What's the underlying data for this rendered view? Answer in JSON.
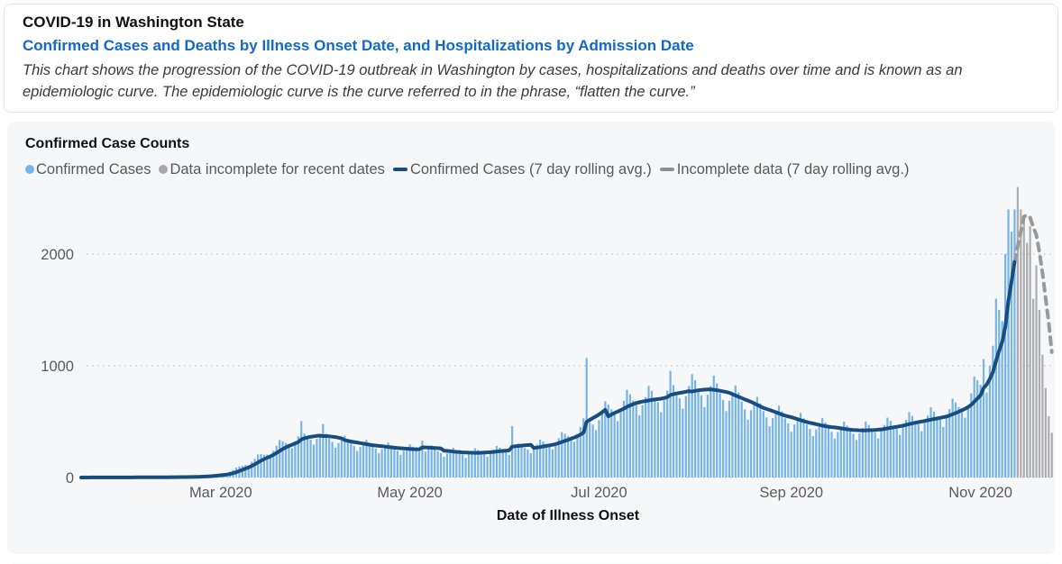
{
  "header": {
    "title": "COVID-19 in Washington State",
    "subtitle": "Confirmed Cases and Deaths by Illness Onset Date, and Hospitalizations by Admission Date",
    "description": "This chart shows the progression of the COVID-19 outbreak in Washington by cases, hospitalizations and deaths over time and is known as an epidemiologic curve. The epidemiologic curve is the curve referred to in the phrase, “flatten the curve.”"
  },
  "chart_card": {
    "title": "Confirmed Case Counts",
    "legend": [
      {
        "marker": "dot",
        "color": "#76b4ea",
        "label": "Confirmed Cases"
      },
      {
        "marker": "dot",
        "color": "#a8a8a8",
        "label": "Data incomplete for recent dates"
      },
      {
        "marker": "line",
        "color": "#184e7f",
        "label": "Confirmed Cases (7 day rolling avg.)"
      },
      {
        "marker": "line",
        "color": "#8f8f8f",
        "label": "Incomplete data (7 day rolling avg.)"
      }
    ]
  },
  "chart_data": {
    "type": "bar",
    "title": "Confirmed Case Counts",
    "xlabel": "Date of Illness Onset",
    "ylabel": "",
    "x_start_date": "2020-01-15",
    "x_unit": "day",
    "ylim": [
      0,
      2700
    ],
    "yticks": [
      0,
      1000,
      2000
    ],
    "grid": "dotted horizontal",
    "legend_position": "top",
    "xticks": [
      {
        "day": 45,
        "label": "Mar 2020"
      },
      {
        "day": 106,
        "label": "May 2020"
      },
      {
        "day": 167,
        "label": "Jul 2020"
      },
      {
        "day": 229,
        "label": "Sep 2020"
      },
      {
        "day": 290,
        "label": "Nov 2020"
      }
    ],
    "incomplete_start_index": 302,
    "rolling_average_window": 7,
    "colors": {
      "bar_confirmed": "#76b4ea",
      "bar_incomplete": "#adadad",
      "line_confirmed": "#184e7f",
      "line_incomplete": "#999999"
    },
    "values": [
      0,
      1,
      0,
      1,
      1,
      0,
      1,
      1,
      1,
      2,
      1,
      0,
      1,
      1,
      1,
      2,
      2,
      1,
      1,
      1,
      2,
      2,
      3,
      3,
      2,
      2,
      2,
      3,
      3,
      5,
      5,
      4,
      4,
      3,
      5,
      6,
      9,
      10,
      10,
      11,
      10,
      16,
      19,
      26,
      29,
      30,
      33,
      32,
      52,
      68,
      89,
      99,
      105,
      112,
      108,
      141,
      168,
      207,
      209,
      205,
      205,
      188,
      240,
      284,
      336,
      325,
      310,
      298,
      264,
      320,
      368,
      505,
      394,
      362,
      339,
      294,
      346,
      383,
      480,
      391,
      348,
      318,
      268,
      308,
      338,
      375,
      343,
      308,
      283,
      238,
      274,
      305,
      337,
      311,
      280,
      258,
      218,
      254,
      280,
      312,
      287,
      259,
      239,
      204,
      239,
      266,
      297,
      276,
      250,
      232,
      330,
      232,
      257,
      287,
      264,
      237,
      219,
      186,
      216,
      239,
      266,
      244,
      221,
      205,
      176,
      207,
      231,
      262,
      246,
      227,
      214,
      186,
      221,
      249,
      283,
      267,
      246,
      231,
      201,
      460,
      269,
      304,
      287,
      264,
      249,
      217,
      259,
      295,
      339,
      322,
      299,
      284,
      252,
      306,
      352,
      407,
      391,
      370,
      358,
      320,
      390,
      452,
      531,
      1070,
      490,
      474,
      424,
      513,
      590,
      682,
      653,
      610,
      578,
      506,
      604,
      687,
      785,
      745,
      688,
      651,
      556,
      649,
      719,
      820,
      776,
      715,
      674,
      584,
      691,
      777,
      955,
      827,
      758,
      710,
      616,
      729,
      819,
      926,
      871,
      791,
      735,
      631,
      741,
      819,
      912,
      843,
      755,
      695,
      594,
      686,
      740,
      825,
      761,
      680,
      609,
      518,
      602,
      656,
      722,
      663,
      595,
      538,
      458,
      532,
      586,
      643,
      592,
      530,
      484,
      410,
      475,
      523,
      578,
      530,
      475,
      435,
      370,
      431,
      478,
      533,
      493,
      444,
      409,
      349,
      407,
      449,
      500,
      464,
      421,
      391,
      336,
      396,
      444,
      502,
      471,
      430,
      404,
      350,
      415,
      470,
      536,
      506,
      465,
      438,
      382,
      455,
      515,
      585,
      552,
      508,
      477,
      414,
      492,
      554,
      628,
      590,
      545,
      516,
      452,
      538,
      614,
      706,
      671,
      630,
      605,
      536,
      649,
      753,
      905,
      870,
      830,
      1060,
      760,
      1000,
      1180,
      1600,
      1500,
      1400,
      2000,
      2400,
      2200,
      2400,
      2600,
      2400,
      2350,
      2100,
      2250,
      1600,
      1900,
      1500,
      1100,
      800,
      550,
      400
    ]
  }
}
